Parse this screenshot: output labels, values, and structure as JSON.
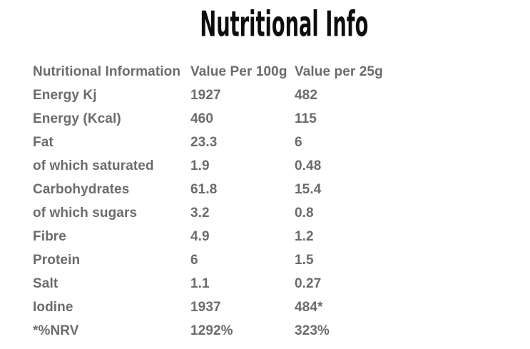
{
  "title": "Nutritional Info",
  "table": {
    "headers": {
      "col1": "Nutritional Information",
      "col2": "Value Per 100g",
      "col3": "Value per 25g"
    },
    "rows": [
      {
        "label": "Energy Kj",
        "v100": "1927",
        "v25": "482"
      },
      {
        "label": "Energy (Kcal)",
        "v100": "460",
        "v25": "115"
      },
      {
        "label": "Fat",
        "v100": "23.3",
        "v25": "6"
      },
      {
        "label": "of which saturated",
        "v100": "1.9",
        "v25": "0.48"
      },
      {
        "label": "Carbohydrates",
        "v100": "61.8",
        "v25": "15.4"
      },
      {
        "label": "of which sugars",
        "v100": "3.2",
        "v25": "0.8"
      },
      {
        "label": "Fibre",
        "v100": "4.9",
        "v25": "1.2"
      },
      {
        "label": "Protein",
        "v100": "6",
        "v25": "1.5"
      },
      {
        "label": "Salt",
        "v100": "1.1",
        "v25": "0.27"
      },
      {
        "label": "Iodine",
        "v100": "1937",
        "v25": "484*"
      },
      {
        "label": "*%NRV",
        "v100": "1292%",
        "v25": "323%"
      }
    ]
  },
  "colors": {
    "background": "#ffffff",
    "title_text": "#0d0d0d",
    "table_text": "#6b6b6b"
  }
}
